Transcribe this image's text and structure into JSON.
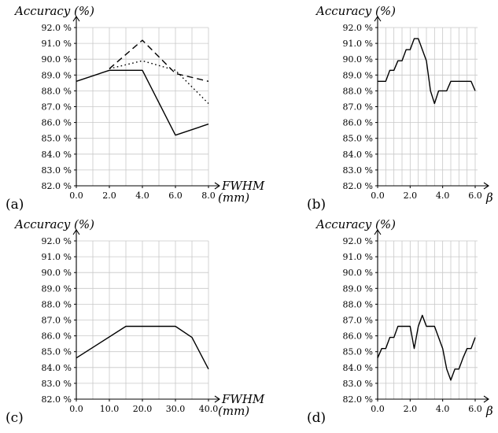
{
  "chart_data": [
    {
      "panel": "(a)",
      "type": "line",
      "ylabel": "Accuracy (%)",
      "xlabel": "FWHM",
      "xunit": "(mm)",
      "xlim": [
        0,
        8.8
      ],
      "ylim": [
        82,
        93
      ],
      "xticks": [
        0,
        2,
        4,
        6,
        8
      ],
      "xtick_labels": [
        "0.0",
        "2.0",
        "4.0",
        "6.0",
        "8.0"
      ],
      "yticks": [
        82,
        83,
        84,
        85,
        86,
        87,
        88,
        89,
        90,
        91,
        92
      ],
      "ytick_labels": [
        "82.0 %",
        "83.0 %",
        "84.0 %",
        "85.0 %",
        "86.0 %",
        "87.0 %",
        "88.0 %",
        "89.0 %",
        "90.0 %",
        "91.0 %",
        "92.0 %"
      ],
      "xgrid": [
        0,
        1,
        2,
        3,
        4,
        5,
        6,
        7,
        8
      ],
      "grid": true,
      "series": [
        {
          "style": "solid",
          "x": [
            0,
            2,
            4,
            6,
            8
          ],
          "y": [
            88.6,
            89.3,
            89.3,
            85.2,
            85.9
          ]
        },
        {
          "style": "dashed",
          "x": [
            2,
            4,
            6,
            8
          ],
          "y": [
            89.4,
            91.2,
            89.1,
            88.6
          ]
        },
        {
          "style": "dotted",
          "x": [
            2,
            4,
            6,
            8
          ],
          "y": [
            89.4,
            89.9,
            89.3,
            87.2
          ]
        }
      ]
    },
    {
      "panel": "(b)",
      "type": "line",
      "ylabel": "Accuracy (%)",
      "xlabel": "β",
      "xunit": "",
      "xlim": [
        0,
        6.6
      ],
      "ylim": [
        82,
        93
      ],
      "xticks": [
        0,
        2,
        4,
        6
      ],
      "xtick_labels": [
        "0.0",
        "2.0",
        "4.0",
        "6.0"
      ],
      "yticks": [
        82,
        83,
        84,
        85,
        86,
        87,
        88,
        89,
        90,
        91,
        92
      ],
      "ytick_labels": [
        "82.0 %",
        "83.0 %",
        "84.0 %",
        "85.0 %",
        "86.0 %",
        "87.0 %",
        "88.0 %",
        "89.0 %",
        "90.0 %",
        "91.0 %",
        "92.0 %"
      ],
      "xgrid": [
        0,
        0.5,
        1,
        1.5,
        2,
        2.5,
        3,
        3.5,
        4,
        4.5,
        5,
        5.5,
        6
      ],
      "grid": true,
      "series": [
        {
          "style": "solid",
          "x": [
            0,
            0.5,
            0.75,
            1.0,
            1.25,
            1.5,
            1.75,
            2.0,
            2.25,
            2.5,
            3.0,
            3.25,
            3.5,
            3.75,
            4.0,
            4.25,
            4.5,
            5.0,
            5.5,
            5.75,
            6.0
          ],
          "y": [
            88.6,
            88.6,
            89.3,
            89.3,
            89.9,
            89.9,
            90.6,
            90.6,
            91.3,
            91.3,
            89.9,
            88.0,
            87.2,
            88.0,
            88.0,
            88.0,
            88.6,
            88.6,
            88.6,
            88.6,
            88.0
          ]
        }
      ]
    },
    {
      "panel": "(c)",
      "type": "line",
      "ylabel": "Accuracy (%)",
      "xlabel": "FWHM",
      "xunit": "(mm)",
      "xlim": [
        0,
        44
      ],
      "ylim": [
        82,
        93
      ],
      "xticks": [
        0,
        10,
        20,
        30,
        40
      ],
      "xtick_labels": [
        "0.0",
        "10.0",
        "20.0",
        "30.0",
        "40.0"
      ],
      "yticks": [
        82,
        83,
        84,
        85,
        86,
        87,
        88,
        89,
        90,
        91,
        92
      ],
      "ytick_labels": [
        "82.0 %",
        "83.0 %",
        "84.0 %",
        "85.0 %",
        "86.0 %",
        "87.0 %",
        "88.0 %",
        "89.0 %",
        "90.0 %",
        "91.0 %",
        "92.0 %"
      ],
      "xgrid": [
        0,
        5,
        10,
        15,
        20,
        25,
        30,
        35,
        40
      ],
      "grid": true,
      "series": [
        {
          "style": "solid",
          "x": [
            0,
            15,
            30,
            35,
            40
          ],
          "y": [
            84.6,
            86.6,
            86.6,
            85.9,
            83.9
          ]
        }
      ]
    },
    {
      "panel": "(d)",
      "type": "line",
      "ylabel": "Accuracy (%)",
      "xlabel": "β",
      "xunit": "",
      "xlim": [
        0,
        6.6
      ],
      "ylim": [
        82,
        93
      ],
      "xticks": [
        0,
        2,
        4,
        6
      ],
      "xtick_labels": [
        "0.0",
        "2.0",
        "4.0",
        "6.0"
      ],
      "yticks": [
        82,
        83,
        84,
        85,
        86,
        87,
        88,
        89,
        90,
        91,
        92
      ],
      "ytick_labels": [
        "82.0 %",
        "83.0 %",
        "84.0 %",
        "85.0 %",
        "86.0 %",
        "87.0 %",
        "88.0 %",
        "89.0 %",
        "90.0 %",
        "91.0 %",
        "92.0 %"
      ],
      "xgrid": [
        0,
        0.5,
        1,
        1.5,
        2,
        2.5,
        3,
        3.5,
        4,
        4.5,
        5,
        5.5,
        6
      ],
      "grid": true,
      "series": [
        {
          "style": "solid",
          "x": [
            0,
            0.25,
            0.5,
            0.75,
            1.0,
            1.25,
            1.5,
            2.0,
            2.25,
            2.5,
            2.75,
            3.0,
            3.5,
            3.75,
            4.0,
            4.25,
            4.5,
            4.75,
            5.0,
            5.25,
            5.5,
            5.75,
            6.0
          ],
          "y": [
            84.6,
            85.2,
            85.2,
            85.9,
            85.9,
            86.6,
            86.6,
            86.6,
            85.2,
            86.6,
            87.3,
            86.6,
            86.6,
            85.9,
            85.2,
            83.9,
            83.2,
            83.9,
            83.9,
            84.6,
            85.2,
            85.2,
            85.9
          ]
        }
      ]
    }
  ]
}
